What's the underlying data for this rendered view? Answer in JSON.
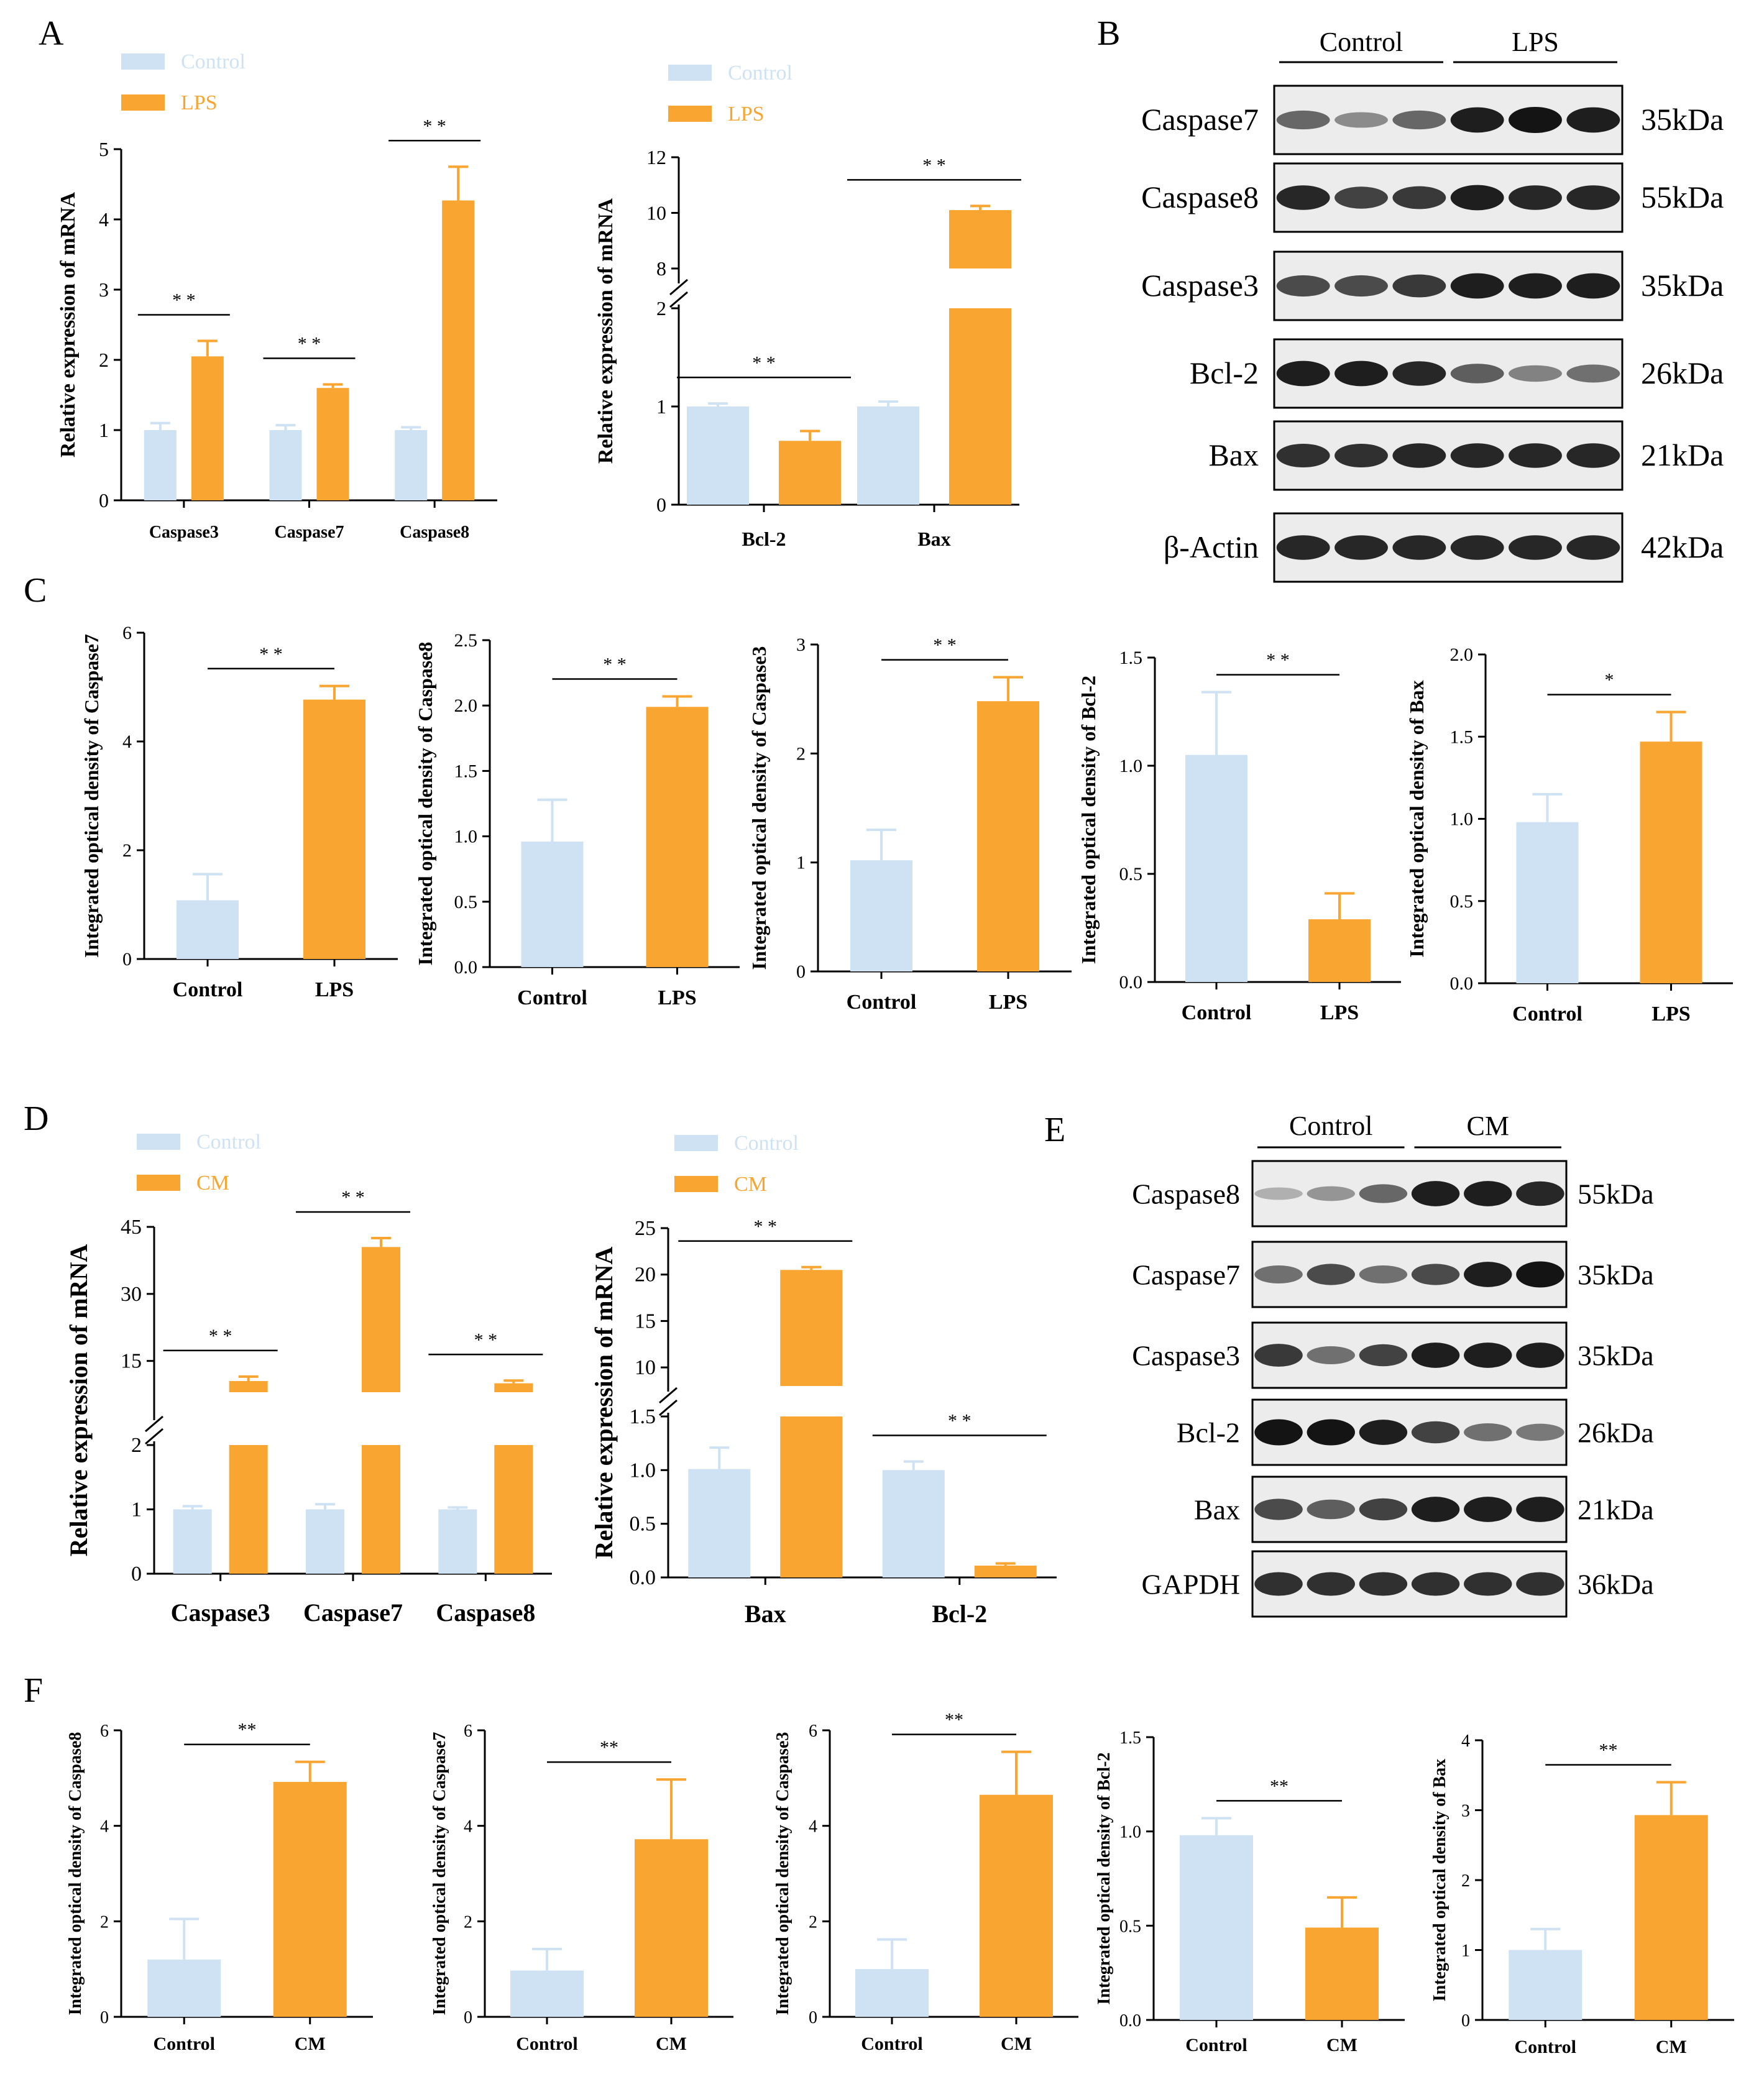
{
  "colors": {
    "control": "#cfe2f3",
    "treatment": "#f9a531",
    "axis": "#000000",
    "blot_bg": "#ececec",
    "band": "#141414"
  },
  "panels": {
    "A": "A",
    "B": "B",
    "C": "C",
    "D": "D",
    "E": "E",
    "F": "F"
  },
  "chart_data": [
    {
      "id": "A1",
      "type": "bar",
      "panel": "A",
      "categories": [
        "Caspase3",
        "Caspase7",
        "Caspase8"
      ],
      "series": [
        {
          "name": "Control",
          "values": [
            1.0,
            1.0,
            1.0
          ],
          "errors": [
            0.1,
            0.07,
            0.04
          ]
        },
        {
          "name": "LPS",
          "values": [
            2.05,
            1.6,
            4.27
          ],
          "errors": [
            0.22,
            0.05,
            0.48
          ]
        }
      ],
      "ylabel": "Relative expression of mRNA",
      "yticks": [
        0,
        1,
        2,
        3,
        4,
        5
      ],
      "ylim": [
        0,
        5
      ],
      "significance": [
        "* *",
        "* *",
        "* *"
      ]
    },
    {
      "id": "A2",
      "type": "bar",
      "panel": "A",
      "categories": [
        "Bcl-2",
        "Bax"
      ],
      "series": [
        {
          "name": "Control",
          "values": [
            1.0,
            1.0
          ],
          "errors": [
            0.03,
            0.05
          ]
        },
        {
          "name": "LPS",
          "values": [
            0.65,
            10.1
          ],
          "errors": [
            0.1,
            0.15
          ]
        }
      ],
      "ylabel": "Relative expression of mRNA",
      "yticks_lower": [
        0,
        1,
        2
      ],
      "yticks_upper": [
        8,
        10,
        12
      ],
      "axis_break": [
        2,
        8
      ],
      "ylim": [
        0,
        12
      ],
      "significance": [
        "* *",
        "* *"
      ]
    },
    {
      "id": "C1",
      "type": "bar",
      "panel": "C",
      "categories": [
        "Control",
        "LPS"
      ],
      "values": [
        1.08,
        4.77
      ],
      "errors": [
        0.48,
        0.25
      ],
      "ylabel": "Integrated optical density of Caspase7",
      "yticks": [
        "0",
        "2",
        "4",
        "6"
      ],
      "ylim": [
        0,
        6
      ],
      "significance": "* *"
    },
    {
      "id": "C2",
      "type": "bar",
      "panel": "C",
      "categories": [
        "Control",
        "LPS"
      ],
      "values": [
        0.96,
        1.99
      ],
      "errors": [
        0.32,
        0.08
      ],
      "ylabel": "Integrated optical density of Caspase8",
      "yticks": [
        "0.0",
        "0.5",
        "1.0",
        "1.5",
        "2.0",
        "2.5"
      ],
      "ylim": [
        0,
        2.5
      ],
      "significance": "* *"
    },
    {
      "id": "C3",
      "type": "bar",
      "panel": "C",
      "categories": [
        "Control",
        "LPS"
      ],
      "values": [
        1.02,
        2.48
      ],
      "errors": [
        0.28,
        0.22
      ],
      "ylabel": "Integrated optical density of Caspase3",
      "yticks": [
        "0",
        "1",
        "2",
        "3"
      ],
      "ylim": [
        0,
        3
      ],
      "significance": "* *"
    },
    {
      "id": "C4",
      "type": "bar",
      "panel": "C",
      "categories": [
        "Control",
        "LPS"
      ],
      "values": [
        1.05,
        0.29
      ],
      "errors": [
        0.29,
        0.12
      ],
      "ylabel": "Integrated optical density of Bcl-2",
      "yticks": [
        "0.0",
        "0.5",
        "1.0",
        "1.5"
      ],
      "ylim": [
        0,
        1.5
      ],
      "significance": "* *"
    },
    {
      "id": "C5",
      "type": "bar",
      "panel": "C",
      "categories": [
        "Control",
        "LPS"
      ],
      "values": [
        0.98,
        1.47
      ],
      "errors": [
        0.17,
        0.18
      ],
      "ylabel": "Integrated optical density of Bax",
      "yticks": [
        "0.0",
        "0.5",
        "1.0",
        "1.5",
        "2.0"
      ],
      "ylim": [
        0,
        2.0
      ],
      "significance": "*"
    },
    {
      "id": "D1",
      "type": "bar",
      "panel": "D",
      "categories": [
        "Caspase3",
        "Caspase7",
        "Caspase8"
      ],
      "series": [
        {
          "name": "Control",
          "values": [
            1.0,
            1.0,
            1.0
          ],
          "errors": [
            0.05,
            0.08,
            0.03
          ]
        },
        {
          "name": "CM",
          "values": [
            10.5,
            40.5,
            10.0
          ],
          "errors": [
            1.0,
            2.0,
            0.6
          ]
        }
      ],
      "ylabel": "Relative expression of mRNA",
      "yticks_lower": [
        0,
        1,
        2
      ],
      "yticks_upper": [
        15,
        30,
        45
      ],
      "axis_break": [
        2,
        8
      ],
      "ylim": [
        0,
        45
      ],
      "significance": [
        "* *",
        "* *",
        "* *"
      ]
    },
    {
      "id": "D2",
      "type": "bar",
      "panel": "D",
      "categories": [
        "Bax",
        "Bcl-2"
      ],
      "series": [
        {
          "name": "Control",
          "values": [
            1.01,
            1.0
          ],
          "errors": [
            0.2,
            0.08
          ]
        },
        {
          "name": "CM",
          "values": [
            20.5,
            0.11
          ],
          "errors": [
            0.3,
            0.02
          ]
        }
      ],
      "ylabel": "Relative expression of mRNA",
      "yticks_lower": [
        "0.0",
        "0.5",
        "1.0",
        "1.5"
      ],
      "yticks_upper": [
        "10",
        "15",
        "20",
        "25"
      ],
      "axis_break": [
        1.5,
        8
      ],
      "ylim": [
        0,
        25
      ],
      "significance": [
        "* *",
        "* *"
      ]
    },
    {
      "id": "F1",
      "type": "bar",
      "panel": "F",
      "categories": [
        "Control",
        "CM"
      ],
      "values": [
        1.2,
        4.92
      ],
      "errors": [
        0.85,
        0.42
      ],
      "ylabel": "Integrated optical density of Caspase8",
      "yticks": [
        "0",
        "2",
        "4",
        "6"
      ],
      "ylim": [
        0,
        6
      ],
      "significance": "**"
    },
    {
      "id": "F2",
      "type": "bar",
      "panel": "F",
      "categories": [
        "Control",
        "CM"
      ],
      "values": [
        0.97,
        3.72
      ],
      "errors": [
        0.45,
        1.25
      ],
      "ylabel": "Integrated optical density of Caspase7",
      "yticks": [
        "0",
        "2",
        "4",
        "6"
      ],
      "ylim": [
        0,
        6
      ],
      "significance": "**"
    },
    {
      "id": "F3",
      "type": "bar",
      "panel": "F",
      "categories": [
        "Control",
        "CM"
      ],
      "values": [
        1.0,
        4.65
      ],
      "errors": [
        0.62,
        0.9
      ],
      "ylabel": "Integrated optical density of Caspase3",
      "yticks": [
        "0",
        "2",
        "4",
        "6"
      ],
      "ylim": [
        0,
        6
      ],
      "significance": "**"
    },
    {
      "id": "F4",
      "type": "bar",
      "panel": "F",
      "categories": [
        "Control",
        "CM"
      ],
      "values": [
        0.98,
        0.49
      ],
      "errors": [
        0.09,
        0.16
      ],
      "ylabel": "Integrated optical density of Bcl-2",
      "yticks": [
        "0.0",
        "0.5",
        "1.0",
        "1.5"
      ],
      "ylim": [
        0,
        1.5
      ],
      "significance": "**"
    },
    {
      "id": "F5",
      "type": "bar",
      "panel": "F",
      "categories": [
        "Control",
        "CM"
      ],
      "values": [
        1.0,
        2.93
      ],
      "errors": [
        0.3,
        0.47
      ],
      "ylabel": "Integrated optical density of Bax",
      "yticks": [
        "0",
        "1",
        "2",
        "3",
        "4"
      ],
      "ylim": [
        0,
        4
      ],
      "significance": "**"
    }
  ],
  "blots": [
    {
      "id": "B",
      "panel": "B",
      "groups": [
        "Control",
        "LPS"
      ],
      "rows": [
        {
          "protein": "Caspase7",
          "size": "35kDa",
          "intensity": [
            0.55,
            0.35,
            0.55,
            0.95,
            1.0,
            0.95
          ]
        },
        {
          "protein": "Caspase8",
          "size": "55kDa",
          "intensity": [
            0.9,
            0.75,
            0.8,
            0.95,
            0.9,
            0.9
          ]
        },
        {
          "protein": "Caspase3",
          "size": "35kDa",
          "intensity": [
            0.7,
            0.7,
            0.8,
            0.95,
            0.95,
            0.95
          ]
        },
        {
          "protein": "Bcl-2",
          "size": "26kDa",
          "intensity": [
            0.95,
            0.95,
            0.9,
            0.6,
            0.4,
            0.5
          ]
        },
        {
          "protein": "Bax",
          "size": "21kDa",
          "intensity": [
            0.85,
            0.85,
            0.9,
            0.9,
            0.9,
            0.9
          ]
        },
        {
          "protein": "β-Actin",
          "size": "42kDa",
          "intensity": [
            0.9,
            0.9,
            0.9,
            0.9,
            0.9,
            0.9
          ]
        }
      ]
    },
    {
      "id": "E",
      "panel": "E",
      "groups": [
        "Control",
        "CM"
      ],
      "rows": [
        {
          "protein": "Caspase8",
          "size": "55kDa",
          "intensity": [
            0.15,
            0.3,
            0.55,
            0.95,
            0.95,
            0.9
          ]
        },
        {
          "protein": "Caspase7",
          "size": "35kDa",
          "intensity": [
            0.5,
            0.7,
            0.5,
            0.7,
            0.95,
            1.0
          ]
        },
        {
          "protein": "Caspase3",
          "size": "35kDa",
          "intensity": [
            0.8,
            0.5,
            0.75,
            0.95,
            0.95,
            0.95
          ]
        },
        {
          "protein": "Bcl-2",
          "size": "26kDa",
          "intensity": [
            1.0,
            1.0,
            0.95,
            0.75,
            0.5,
            0.45
          ]
        },
        {
          "protein": "Bax",
          "size": "21kDa",
          "intensity": [
            0.7,
            0.6,
            0.75,
            0.95,
            0.95,
            0.95
          ]
        },
        {
          "protein": "GAPDH",
          "size": "36kDa",
          "intensity": [
            0.85,
            0.85,
            0.85,
            0.85,
            0.85,
            0.85
          ]
        }
      ]
    }
  ]
}
